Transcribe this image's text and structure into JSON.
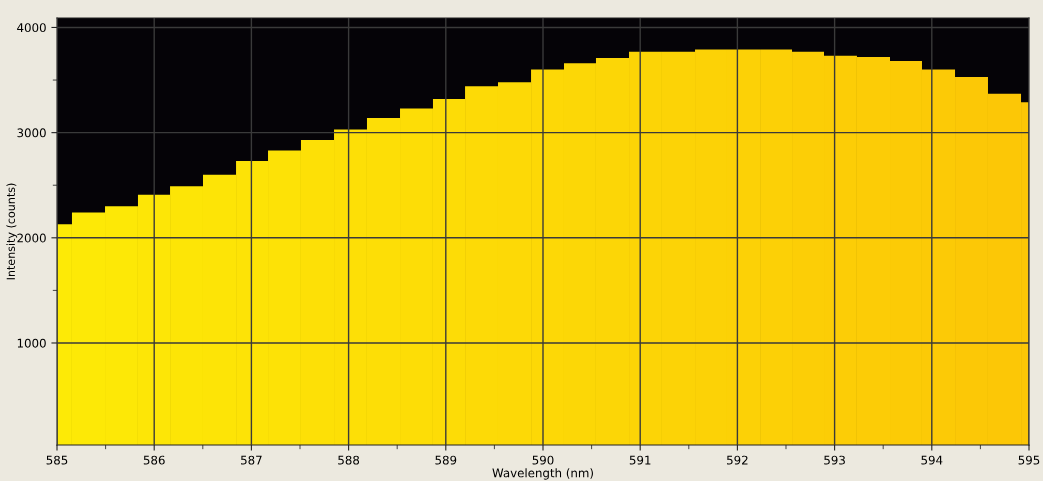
{
  "chart_data": {
    "type": "histogram",
    "xlabel": "Wavelength (nm)",
    "ylabel": "Intensity (counts)",
    "bins": [
      585.0,
      585.154,
      585.494,
      585.833,
      586.163,
      586.502,
      586.842,
      587.171,
      587.51,
      587.85,
      588.189,
      588.529,
      588.868,
      589.198,
      589.537,
      589.877,
      590.216,
      590.545,
      590.885,
      591.224,
      591.564,
      591.893,
      592.233,
      592.562,
      592.891,
      593.23,
      593.57,
      593.899,
      594.239,
      594.578,
      594.918,
      595.0
    ],
    "values": [
      2130,
      2240,
      2300,
      2410,
      2490,
      2600,
      2730,
      2830,
      2930,
      3030,
      3140,
      3230,
      3320,
      3440,
      3480,
      3600,
      3660,
      3710,
      3770,
      3770,
      3790,
      3790,
      3790,
      3770,
      3730,
      3720,
      3680,
      3600,
      3530,
      3370,
      3290
    ],
    "colors": [
      "#fdea06",
      "#fde906",
      "#fde806",
      "#fde606",
      "#fde506",
      "#fde406",
      "#fde306",
      "#fde206",
      "#fde006",
      "#fddf06",
      "#fdde06",
      "#fddd06",
      "#fddc06",
      "#fdda06",
      "#fdd906",
      "#fdd806",
      "#fcd706",
      "#fcd606",
      "#fcd406",
      "#fcd306",
      "#fcd206",
      "#fcd106",
      "#fcd006",
      "#fcce06",
      "#fccd06",
      "#fccc06",
      "#fccb06",
      "#fcca06",
      "#fcc806",
      "#fcc706",
      "#fcc606"
    ],
    "xlim": [
      585,
      595
    ],
    "ylim": [
      30,
      4090
    ],
    "xticks": [
      585,
      {
        "value": 585.5,
        "label": null
      },
      586,
      {
        "value": 586.5,
        "label": null
      },
      587,
      {
        "value": 587.5,
        "label": null
      },
      588,
      {
        "value": 588.5,
        "label": null
      },
      589,
      {
        "value": 589.5,
        "label": null
      },
      590,
      {
        "value": 590.5,
        "label": null
      },
      591,
      {
        "value": 591.5,
        "label": null
      },
      592,
      {
        "value": 592.5,
        "label": null
      },
      593,
      {
        "value": 593.5,
        "label": null
      },
      594,
      {
        "value": 594.5,
        "label": null
      },
      595
    ],
    "yticks": [
      1000,
      {
        "value": 1500,
        "label": null
      },
      2000,
      {
        "value": 2500,
        "label": null
      },
      3000,
      {
        "value": 3500,
        "label": null
      },
      4000
    ],
    "grid": true
  }
}
